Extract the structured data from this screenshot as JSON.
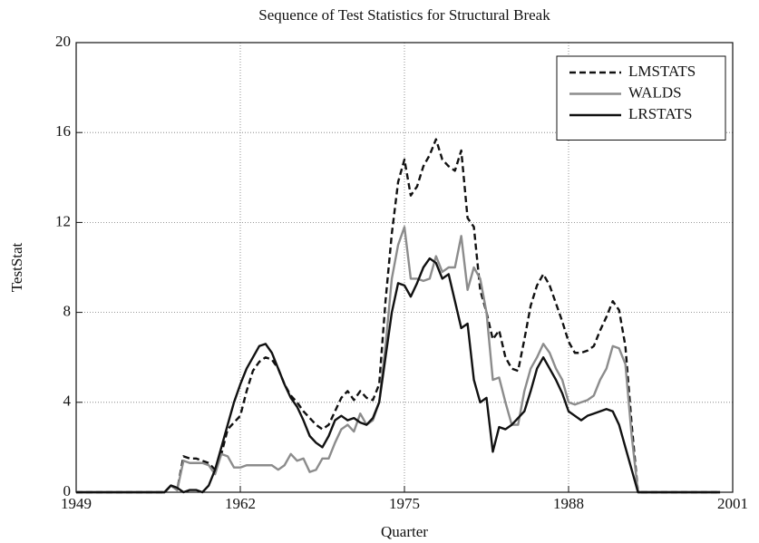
{
  "chart_data": {
    "type": "line",
    "title": "Sequence of Test Statistics for Structural Break",
    "x_label": "Quarter",
    "y_label": "TestStat",
    "xlim": [
      1949,
      2001
    ],
    "xticks": [
      1949,
      1962,
      1975,
      1988,
      2001
    ],
    "ylim": [
      0,
      20
    ],
    "yticks": [
      0,
      4,
      8,
      12,
      16,
      20
    ],
    "grid": true,
    "legend": "upper right",
    "x": [
      1949,
      1956,
      1956.5,
      1957,
      1957.5,
      1958,
      1958.5,
      1959,
      1959.5,
      1960,
      1960.5,
      1961,
      1961.5,
      1962,
      1962.5,
      1963,
      1963.5,
      1964,
      1964.5,
      1965,
      1965.5,
      1966,
      1966.5,
      1967,
      1967.5,
      1968,
      1968.5,
      1969,
      1969.5,
      1970,
      1970.5,
      1971,
      1971.5,
      1972,
      1972.5,
      1973,
      1973.5,
      1974,
      1974.5,
      1975,
      1975.5,
      1976,
      1976.5,
      1977,
      1977.5,
      1978,
      1978.5,
      1979,
      1979.5,
      1980,
      1980.5,
      1981,
      1981.5,
      1982,
      1982.5,
      1983,
      1983.5,
      1984,
      1984.5,
      1985,
      1985.5,
      1986,
      1986.5,
      1987,
      1987.5,
      1988,
      1988.5,
      1989,
      1989.5,
      1990,
      1990.5,
      1991,
      1991.5,
      1992,
      1992.5,
      1993,
      1993.5,
      1994,
      2000
    ],
    "series": [
      {
        "name": "LMSTATS",
        "color": "#111111",
        "style": "dashed",
        "values": [
          0,
          0,
          0.3,
          0.1,
          1.6,
          1.5,
          1.5,
          1.4,
          1.3,
          1.0,
          1.7,
          2.8,
          3.1,
          3.4,
          4.5,
          5.4,
          5.8,
          6.0,
          5.9,
          5.5,
          4.8,
          4.3,
          4.0,
          3.6,
          3.3,
          3.0,
          2.8,
          3.0,
          3.6,
          4.2,
          4.5,
          4.1,
          4.5,
          4.2,
          4.1,
          4.8,
          8.5,
          11.5,
          13.8,
          14.8,
          13.2,
          13.6,
          14.5,
          15.0,
          15.7,
          14.8,
          14.5,
          14.3,
          15.2,
          12.2,
          11.8,
          9.0,
          8.0,
          6.8,
          7.2,
          6.0,
          5.5,
          5.4,
          6.8,
          8.3,
          9.2,
          9.7,
          9.2,
          8.4,
          7.6,
          6.7,
          6.2,
          6.2,
          6.3,
          6.5,
          7.2,
          7.8,
          8.5,
          8.1,
          6.5,
          3.0,
          0,
          0,
          0
        ]
      },
      {
        "name": "WALDS",
        "color": "#8c8c8c",
        "style": "solid",
        "values": [
          0,
          0,
          0.3,
          0.1,
          1.4,
          1.3,
          1.3,
          1.3,
          1.2,
          0.8,
          1.7,
          1.6,
          1.1,
          1.1,
          1.2,
          1.2,
          1.2,
          1.2,
          1.2,
          1.0,
          1.2,
          1.7,
          1.4,
          1.5,
          0.9,
          1.0,
          1.5,
          1.5,
          2.2,
          2.8,
          3.0,
          2.7,
          3.5,
          3.0,
          3.2,
          4.0,
          6.5,
          9.5,
          11.0,
          11.8,
          9.5,
          9.5,
          9.4,
          9.5,
          10.5,
          9.8,
          10.0,
          10.0,
          11.4,
          9.0,
          10.0,
          9.5,
          8.0,
          5.0,
          5.1,
          4.0,
          3.0,
          3.0,
          4.5,
          5.5,
          6.0,
          6.6,
          6.2,
          5.5,
          5.0,
          4.0,
          3.9,
          4.0,
          4.1,
          4.3,
          5.0,
          5.5,
          6.5,
          6.4,
          5.7,
          2.5,
          0,
          0,
          0
        ]
      },
      {
        "name": "LRSTATS",
        "color": "#111111",
        "style": "solid",
        "values": [
          0,
          0,
          0.3,
          0.2,
          0,
          0.1,
          0.1,
          0,
          0.3,
          1.0,
          2.0,
          3.0,
          4.0,
          4.8,
          5.5,
          6.0,
          6.5,
          6.6,
          6.2,
          5.5,
          4.8,
          4.2,
          3.8,
          3.2,
          2.5,
          2.2,
          2.0,
          2.5,
          3.2,
          3.4,
          3.2,
          3.3,
          3.1,
          3.0,
          3.3,
          4.0,
          6.0,
          8.0,
          9.3,
          9.2,
          8.7,
          9.3,
          10.0,
          10.4,
          10.2,
          9.5,
          9.7,
          8.5,
          7.3,
          7.5,
          5.0,
          4.0,
          4.2,
          1.8,
          2.9,
          2.8,
          3.0,
          3.3,
          3.6,
          4.5,
          5.5,
          6.0,
          5.5,
          5.0,
          4.4,
          3.6,
          3.4,
          3.2,
          3.4,
          3.5,
          3.6,
          3.7,
          3.6,
          3.0,
          2.0,
          1.0,
          0,
          0,
          0
        ]
      }
    ]
  }
}
